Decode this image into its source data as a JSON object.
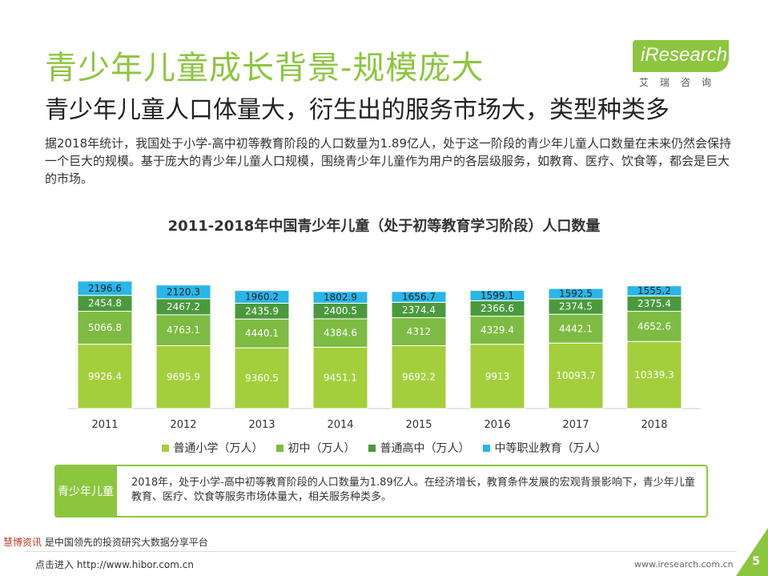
{
  "header": {
    "title": "青少年儿童成长背景-规模庞大",
    "subtitle": "青少年儿童人口体量大，衍生出的服务市场大，类型种类多",
    "paragraph": "据2018年统计，我国处于小学-高中初等教育阶段的人口数量为1.89亿人，处于这一阶段的青少年儿童人口数量在未来仍然会保持一个巨大的规模。基于庞大的青少年儿童人口规模，围绕青少年儿童作为用户的各层级服务，如教育、医疗、饮食等，都会是巨大的市场。"
  },
  "logo": {
    "text": "iResearch",
    "cn": "艾瑞咨询"
  },
  "chart_data": {
    "type": "bar",
    "stacked": true,
    "title": "2011-2018年中国青少年儿童（处于初等教育学习阶段）人口数量",
    "categories": [
      "2011",
      "2012",
      "2013",
      "2014",
      "2015",
      "2016",
      "2017",
      "2018"
    ],
    "series": [
      {
        "name": "普通小学（万人）",
        "color": "#a4cf3c",
        "values": [
          9926.4,
          9695.9,
          9360.5,
          9451.1,
          9692.2,
          9913,
          10093.7,
          10339.3
        ]
      },
      {
        "name": "初中（万人）",
        "color": "#7dbb42",
        "values": [
          5066.8,
          4763.1,
          4440.1,
          4384.6,
          4312,
          4329.4,
          4442.1,
          4652.6
        ]
      },
      {
        "name": "普通高中（万人）",
        "color": "#4a9a3d",
        "values": [
          2454.8,
          2467.2,
          2435.9,
          2400.5,
          2374.4,
          2366.6,
          2374.5,
          2375.4
        ]
      },
      {
        "name": "中等职业教育（万人）",
        "color": "#29b6e8",
        "values": [
          2196.6,
          2120.3,
          1960.2,
          1802.9,
          1656.7,
          1599.1,
          1592.5,
          1555.2
        ]
      }
    ],
    "legend": "bottom",
    "grid": false
  },
  "summary": {
    "tag": "青少年儿童",
    "text": "2018年，处于小学-高中初等教育阶段的人口数量为1.89亿人。在经济增长，教育条件发展的宏观背景影响下，青少年儿童教育、医疗、饮食等服务市场体量大，相关服务种类多。"
  },
  "watermark": {
    "line1_red": "慧博资讯",
    "line1": "是中国领先的投资研究大数据分享平台",
    "line2": "点击进入 http://www.hibor.com.cn"
  },
  "footer": {
    "url": "www.iresearch.com.cn",
    "page": "5"
  }
}
